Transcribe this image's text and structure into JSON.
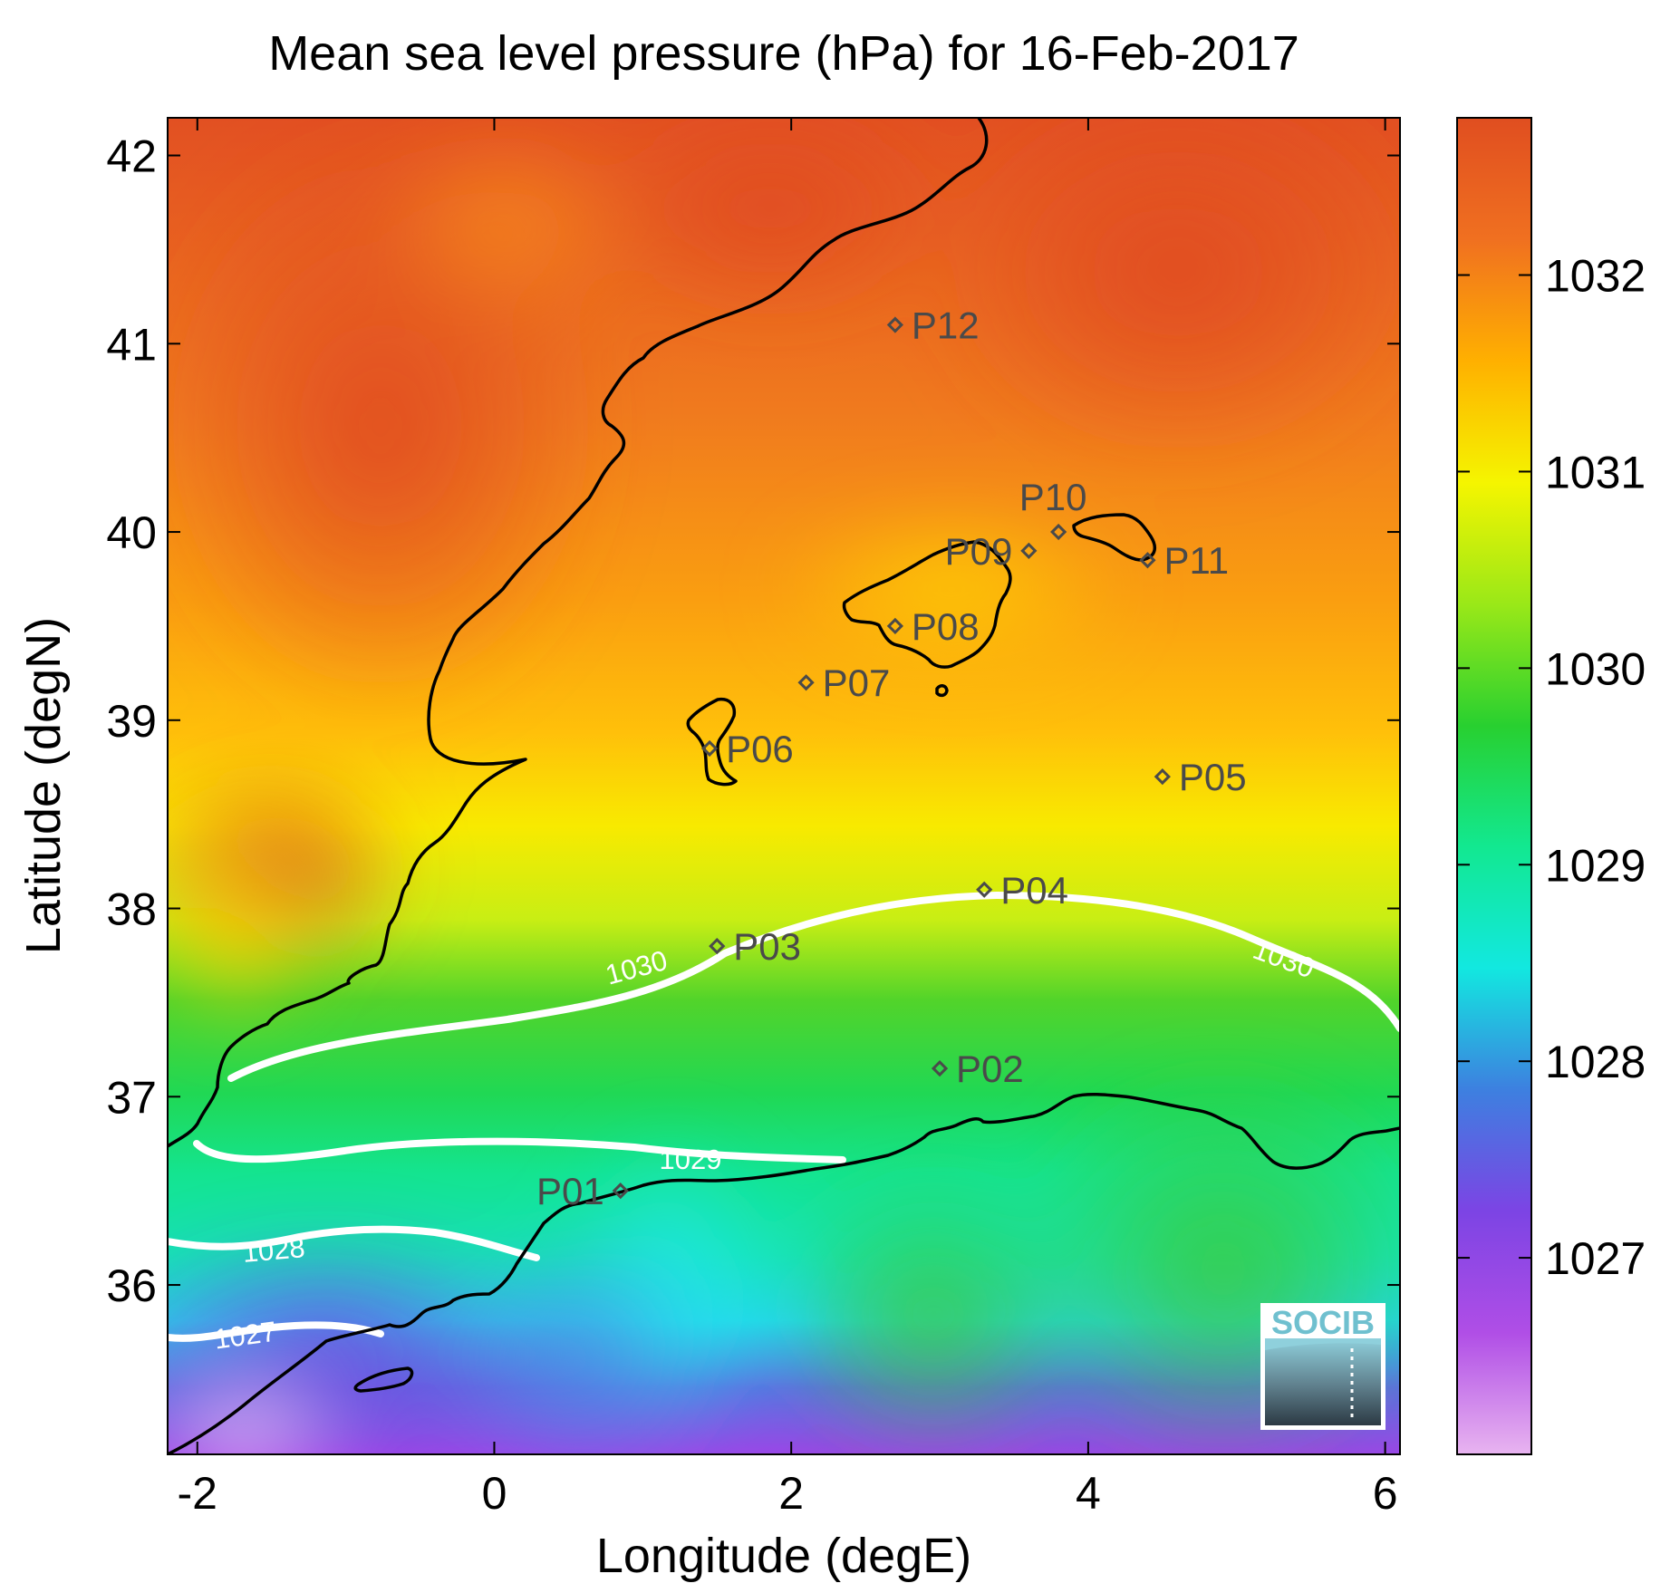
{
  "title": "Mean sea level pressure (hPa) for 16-Feb-2017",
  "xaxis": {
    "label": "Longitude (degE)",
    "range": [
      -2.2,
      6.1
    ],
    "ticks": [
      {
        "value": -2,
        "label": "-2"
      },
      {
        "value": 0,
        "label": "0"
      },
      {
        "value": 2,
        "label": "2"
      },
      {
        "value": 4,
        "label": "4"
      },
      {
        "value": 6,
        "label": "6"
      }
    ]
  },
  "yaxis": {
    "label": "Latitude (degN)",
    "range": [
      35.1,
      42.2
    ],
    "ticks": [
      {
        "value": 36,
        "label": "36"
      },
      {
        "value": 37,
        "label": "37"
      },
      {
        "value": 38,
        "label": "38"
      },
      {
        "value": 39,
        "label": "39"
      },
      {
        "value": 40,
        "label": "40"
      },
      {
        "value": 41,
        "label": "41"
      },
      {
        "value": 42,
        "label": "42"
      }
    ]
  },
  "colorbar": {
    "range": [
      1026.0,
      1032.8
    ],
    "ticks": [
      {
        "value": 1027,
        "label": "1027"
      },
      {
        "value": 1028,
        "label": "1028"
      },
      {
        "value": 1029,
        "label": "1029"
      },
      {
        "value": 1030,
        "label": "1030"
      },
      {
        "value": 1031,
        "label": "1031"
      },
      {
        "value": 1032,
        "label": "1032"
      }
    ],
    "colors": [
      "#e8b4f0",
      "#b04ee6",
      "#7c44e4",
      "#3d80e0",
      "#12e8e0",
      "#12e890",
      "#28d030",
      "#9ae818",
      "#f5f500",
      "#ffb000",
      "#f07020",
      "#e04e20"
    ]
  },
  "stations": [
    {
      "id": "P01",
      "lon": 0.85,
      "lat": 36.5,
      "label_side": "left"
    },
    {
      "id": "P02",
      "lon": 3.0,
      "lat": 37.15,
      "label_side": "right"
    },
    {
      "id": "P03",
      "lon": 1.5,
      "lat": 37.8,
      "label_side": "right"
    },
    {
      "id": "P04",
      "lon": 3.3,
      "lat": 38.1,
      "label_side": "right"
    },
    {
      "id": "P05",
      "lon": 4.5,
      "lat": 38.7,
      "label_side": "right"
    },
    {
      "id": "P06",
      "lon": 1.45,
      "lat": 38.85,
      "label_side": "right"
    },
    {
      "id": "P07",
      "lon": 2.1,
      "lat": 39.2,
      "label_side": "right"
    },
    {
      "id": "P08",
      "lon": 2.7,
      "lat": 39.5,
      "label_side": "right"
    },
    {
      "id": "P09",
      "lon": 3.6,
      "lat": 39.9,
      "label_side": "left"
    },
    {
      "id": "P10",
      "lon": 3.8,
      "lat": 40.0,
      "label_side": "above"
    },
    {
      "id": "P11",
      "lon": 4.4,
      "lat": 39.85,
      "label_side": "right"
    },
    {
      "id": "P12",
      "lon": 2.7,
      "lat": 41.1,
      "label_side": "right"
    }
  ],
  "contours": [
    {
      "level": 1030,
      "label": "1030"
    },
    {
      "level": 1029,
      "label": "1029"
    },
    {
      "level": 1028,
      "label": "1028"
    },
    {
      "level": 1027,
      "label": "1027"
    }
  ],
  "logo_text": "SOCIB"
}
